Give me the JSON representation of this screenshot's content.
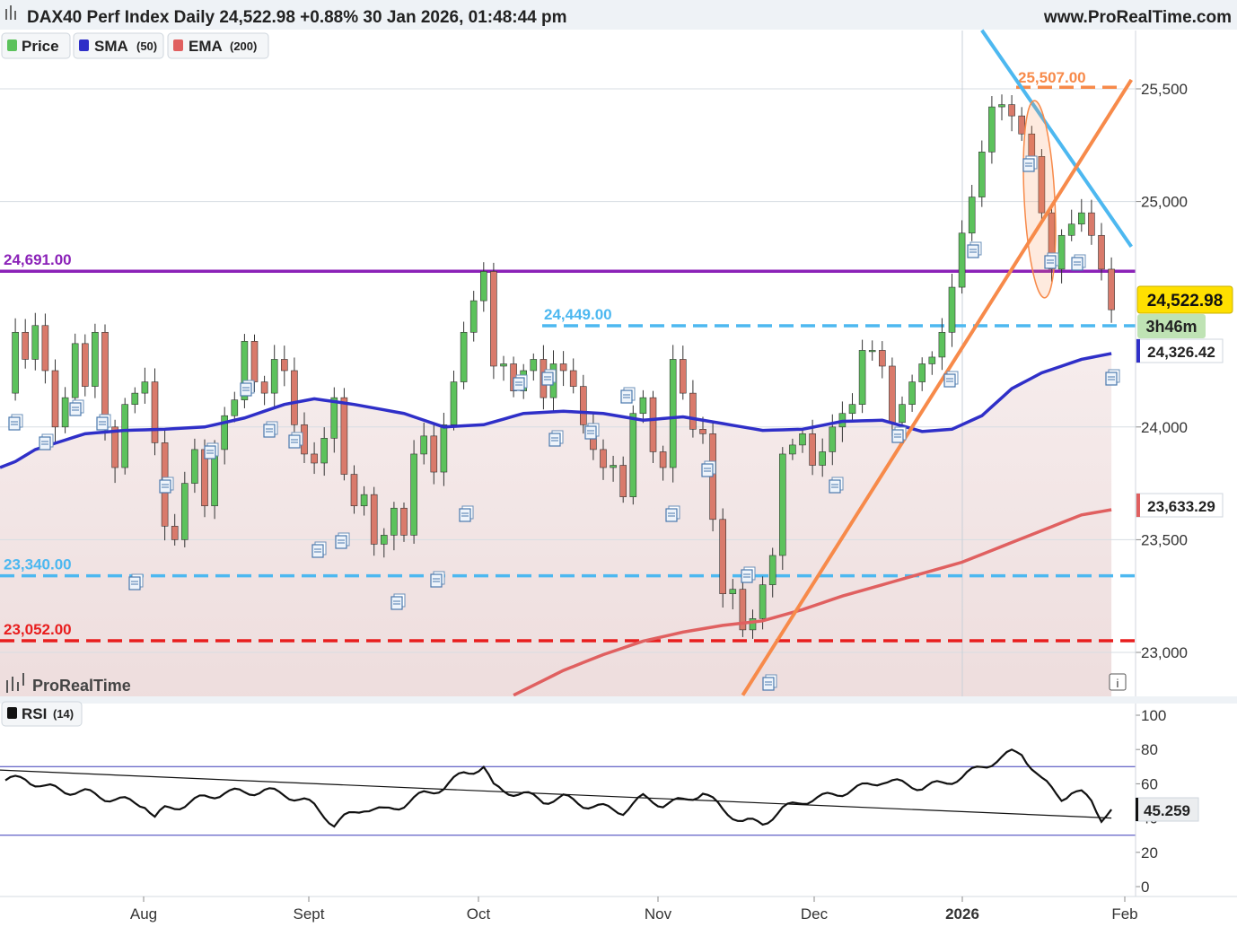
{
  "header": {
    "title": "DAX40 Perf Index Daily 24,522.98 +0.88% 30 Jan 2026, 01:48:44 pm",
    "site": "www.ProRealTime.com"
  },
  "legend": {
    "price": "Price",
    "sma": "SMA",
    "sma_param": "(50)",
    "ema": "EMA",
    "ema_param": "(200)"
  },
  "watermark": "ProRealTime",
  "info_icon": "i",
  "rsi_panel": {
    "label": "RSI",
    "param": "(14)",
    "current": "45.259",
    "yticks": [
      "100",
      "80",
      "60",
      "40",
      "20",
      "0"
    ]
  },
  "price_axis": {
    "ticks": [
      "25,500",
      "25,000",
      "24,000",
      "23,500",
      "23,000"
    ],
    "current_price": "24,522.98",
    "countdown": "3h46m",
    "sma_value": "24,326.42",
    "ema_value": "23,633.29"
  },
  "x_axis": {
    "ticks": [
      "Aug",
      "Sept",
      "Oct",
      "Nov",
      "Dec",
      "2026",
      "Feb"
    ]
  },
  "levels": [
    {
      "value": 24691,
      "label": "24,691.00",
      "color": "#8b22b8",
      "style": "solid"
    },
    {
      "value": 24449,
      "label": "24,449.00",
      "color": "#4db8f0",
      "style": "dashed"
    },
    {
      "value": 23340,
      "label": "23,340.00",
      "color": "#4db8f0",
      "style": "dashed"
    },
    {
      "value": 23052,
      "label": "23,052.00",
      "color": "#e81e1e",
      "style": "dashed"
    },
    {
      "value": 25507,
      "label": "25,507.00",
      "color": "#f78a4a",
      "style": "dashed"
    }
  ],
  "colors": {
    "up": "#5cc25c",
    "down": "#d97a6b",
    "sma": "#2f2fc8",
    "ema": "#e06060",
    "trend_blue": "#4db8f0",
    "trend_orange": "#f78a4a"
  },
  "chart_data": {
    "type": "candlestick",
    "title": "DAX40 Perf Index Daily",
    "x_range": [
      "2025-07-01",
      "2026-02-02"
    ],
    "ylim": [
      22820,
      25620
    ],
    "yticks": [
      23000,
      23500,
      24000,
      25000,
      25500
    ],
    "close_path": [
      [
        0,
        24150
      ],
      [
        1,
        24420
      ],
      [
        2,
        24300
      ],
      [
        3,
        24450
      ],
      [
        4,
        24250
      ],
      [
        5,
        24000
      ],
      [
        6,
        24130
      ],
      [
        7,
        24370
      ],
      [
        8,
        24180
      ],
      [
        9,
        24420
      ],
      [
        10,
        24000
      ],
      [
        11,
        23820
      ],
      [
        12,
        24100
      ],
      [
        13,
        24150
      ],
      [
        14,
        24200
      ],
      [
        15,
        23930
      ],
      [
        16,
        23560
      ],
      [
        17,
        23500
      ],
      [
        18,
        23750
      ],
      [
        19,
        23900
      ],
      [
        20,
        23650
      ],
      [
        21,
        23900
      ],
      [
        22,
        24050
      ],
      [
        23,
        24120
      ],
      [
        24,
        24380
      ],
      [
        25,
        24200
      ],
      [
        26,
        24150
      ],
      [
        27,
        24300
      ],
      [
        28,
        24250
      ],
      [
        29,
        24010
      ],
      [
        30,
        23880
      ],
      [
        31,
        23840
      ],
      [
        32,
        23950
      ],
      [
        33,
        24130
      ],
      [
        34,
        23790
      ],
      [
        35,
        23650
      ],
      [
        36,
        23700
      ],
      [
        37,
        23480
      ],
      [
        38,
        23520
      ],
      [
        39,
        23640
      ],
      [
        40,
        23520
      ],
      [
        41,
        23880
      ],
      [
        42,
        23960
      ],
      [
        43,
        23800
      ],
      [
        44,
        24010
      ],
      [
        45,
        24200
      ],
      [
        46,
        24420
      ],
      [
        47,
        24560
      ],
      [
        48,
        24690
      ],
      [
        49,
        24270
      ],
      [
        50,
        24280
      ],
      [
        51,
        24160
      ],
      [
        52,
        24250
      ],
      [
        53,
        24300
      ],
      [
        54,
        24130
      ],
      [
        55,
        24280
      ],
      [
        56,
        24250
      ],
      [
        57,
        24180
      ],
      [
        58,
        24010
      ],
      [
        59,
        23900
      ],
      [
        60,
        23820
      ],
      [
        61,
        23830
      ],
      [
        62,
        23690
      ],
      [
        63,
        24060
      ],
      [
        64,
        24130
      ],
      [
        65,
        23890
      ],
      [
        66,
        23820
      ],
      [
        67,
        24300
      ],
      [
        68,
        24150
      ],
      [
        69,
        23990
      ],
      [
        70,
        23970
      ],
      [
        71,
        23590
      ],
      [
        72,
        23260
      ],
      [
        73,
        23280
      ],
      [
        74,
        23100
      ],
      [
        75,
        23150
      ],
      [
        76,
        23300
      ],
      [
        77,
        23430
      ],
      [
        78,
        23880
      ],
      [
        79,
        23920
      ],
      [
        80,
        23970
      ],
      [
        81,
        23830
      ],
      [
        82,
        23890
      ],
      [
        83,
        24000
      ],
      [
        84,
        24060
      ],
      [
        85,
        24100
      ],
      [
        86,
        24340
      ],
      [
        87,
        24340
      ],
      [
        88,
        24270
      ],
      [
        89,
        24020
      ],
      [
        90,
        24100
      ],
      [
        91,
        24200
      ],
      [
        92,
        24280
      ],
      [
        93,
        24310
      ],
      [
        94,
        24420
      ],
      [
        95,
        24620
      ],
      [
        96,
        24860
      ],
      [
        97,
        25020
      ],
      [
        98,
        25220
      ],
      [
        99,
        25420
      ],
      [
        100,
        25430
      ],
      [
        101,
        25380
      ],
      [
        102,
        25300
      ],
      [
        103,
        25200
      ],
      [
        104,
        24950
      ],
      [
        105,
        24700
      ],
      [
        106,
        24850
      ],
      [
        107,
        24900
      ],
      [
        108,
        24950
      ],
      [
        109,
        24850
      ],
      [
        110,
        24700
      ],
      [
        111,
        24520
      ]
    ],
    "sma50": [
      [
        0,
        23820
      ],
      [
        3,
        23900
      ],
      [
        8,
        23970
      ],
      [
        12,
        23985
      ],
      [
        16,
        23990
      ],
      [
        20,
        24000
      ],
      [
        24,
        24040
      ],
      [
        28,
        24100
      ],
      [
        31,
        24125
      ],
      [
        35,
        24100
      ],
      [
        40,
        24060
      ],
      [
        44,
        24000
      ],
      [
        48,
        24010
      ],
      [
        52,
        24060
      ],
      [
        56,
        24070
      ],
      [
        60,
        24060
      ],
      [
        64,
        24030
      ],
      [
        68,
        24045
      ],
      [
        72,
        24015
      ],
      [
        76,
        23985
      ],
      [
        80,
        23990
      ],
      [
        84,
        24025
      ],
      [
        88,
        24030
      ],
      [
        92,
        23980
      ],
      [
        95,
        23990
      ],
      [
        98,
        24050
      ],
      [
        101,
        24170
      ],
      [
        104,
        24240
      ],
      [
        108,
        24300
      ],
      [
        111,
        24326
      ]
    ],
    "ema200": [
      [
        51,
        22810
      ],
      [
        56,
        22920
      ],
      [
        60,
        22990
      ],
      [
        64,
        23050
      ],
      [
        68,
        23090
      ],
      [
        72,
        23120
      ],
      [
        76,
        23140
      ],
      [
        80,
        23190
      ],
      [
        84,
        23250
      ],
      [
        88,
        23300
      ],
      [
        92,
        23350
      ],
      [
        96,
        23400
      ],
      [
        100,
        23470
      ],
      [
        104,
        23540
      ],
      [
        108,
        23610
      ],
      [
        111,
        23633
      ]
    ],
    "trendlines": [
      {
        "name": "falling",
        "color": "#4db8f0",
        "from": [
          98,
          25760
        ],
        "to": [
          113,
          24800
        ]
      },
      {
        "name": "rising",
        "color": "#f78a4a",
        "from": [
          74,
          22810
        ],
        "to": [
          113,
          25540
        ]
      }
    ],
    "rsi": {
      "ylim": [
        0,
        100
      ],
      "upper": 70,
      "lower": 30,
      "last": 45.259,
      "values": [
        [
          0,
          62
        ],
        [
          2,
          63
        ],
        [
          4,
          58
        ],
        [
          6,
          56
        ],
        [
          8,
          55
        ],
        [
          10,
          52
        ],
        [
          12,
          50
        ],
        [
          14,
          48
        ],
        [
          15,
          40
        ],
        [
          16,
          45
        ],
        [
          18,
          48
        ],
        [
          20,
          52
        ],
        [
          22,
          55
        ],
        [
          24,
          55
        ],
        [
          26,
          56
        ],
        [
          28,
          54
        ],
        [
          30,
          50
        ],
        [
          31,
          47
        ],
        [
          32,
          42
        ],
        [
          33,
          36
        ],
        [
          34,
          40
        ],
        [
          36,
          46
        ],
        [
          38,
          44
        ],
        [
          40,
          48
        ],
        [
          42,
          54
        ],
        [
          44,
          58
        ],
        [
          46,
          66
        ],
        [
          47,
          68
        ],
        [
          48,
          70
        ],
        [
          49,
          58
        ],
        [
          50,
          56
        ],
        [
          52,
          54
        ],
        [
          54,
          50
        ],
        [
          56,
          52
        ],
        [
          58,
          48
        ],
        [
          60,
          46
        ],
        [
          62,
          44
        ],
        [
          64,
          52
        ],
        [
          66,
          48
        ],
        [
          68,
          50
        ],
        [
          70,
          55
        ],
        [
          71,
          50
        ],
        [
          72,
          45
        ],
        [
          74,
          38
        ],
        [
          76,
          37
        ],
        [
          78,
          45
        ],
        [
          80,
          50
        ],
        [
          82,
          52
        ],
        [
          84,
          55
        ],
        [
          86,
          58
        ],
        [
          88,
          62
        ],
        [
          90,
          60
        ],
        [
          92,
          58
        ],
        [
          94,
          60
        ],
        [
          96,
          64
        ],
        [
          98,
          70
        ],
        [
          100,
          75
        ],
        [
          101,
          78
        ],
        [
          102,
          78
        ],
        [
          103,
          70
        ],
        [
          104,
          62
        ],
        [
          106,
          52
        ],
        [
          107,
          55
        ],
        [
          108,
          54
        ],
        [
          109,
          50
        ],
        [
          110,
          40
        ],
        [
          111,
          45
        ]
      ],
      "trendline": {
        "from": [
          0,
          68
        ],
        "to": [
          111,
          40
        ]
      }
    }
  }
}
